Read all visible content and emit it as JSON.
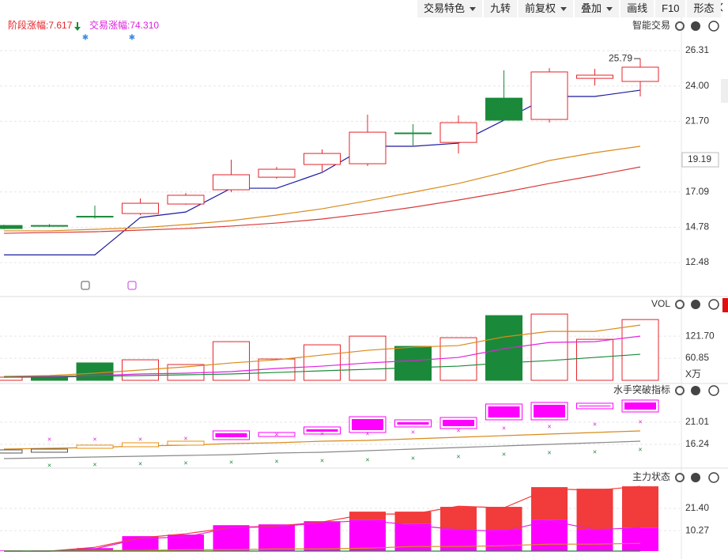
{
  "toolbar": {
    "buttons": [
      {
        "label": "交易特色",
        "menu": true
      },
      {
        "label": "九转",
        "menu": false
      },
      {
        "label": "前复权",
        "menu": true
      },
      {
        "label": "叠加",
        "menu": true
      },
      {
        "label": "画线",
        "menu": false
      },
      {
        "label": "F10",
        "menu": false
      },
      {
        "label": "形态",
        "menu": false
      }
    ]
  },
  "header": {
    "stage_gain": "阶段涨幅:7.617",
    "trade_gain": "交易涨幅:74.310"
  },
  "chart_data": [
    {
      "type": "candlestick",
      "title": "智能交易",
      "up_color": "#e5242b",
      "down_color": "#1a8a3a",
      "open": [
        14.9,
        14.9,
        15.5,
        15.68,
        16.3,
        17.23,
        18.05,
        18.88,
        18.93,
        20.94,
        20.32,
        23.21,
        21.82,
        24.5,
        24.3
      ],
      "close": [
        14.7,
        14.9,
        15.5,
        16.35,
        16.87,
        18.21,
        18.57,
        19.6,
        20.99,
        20.94,
        21.61,
        21.77,
        24.92,
        24.71,
        25.23
      ],
      "high": [
        14.95,
        15.0,
        16.2,
        16.66,
        17.02,
        19.19,
        18.72,
        19.86,
        22.13,
        21.51,
        22.08,
        25.02,
        25.17,
        25.12,
        25.79
      ],
      "low": [
        14.65,
        14.8,
        15.35,
        15.58,
        16.25,
        17.07,
        17.95,
        18.42,
        18.78,
        20.12,
        19.6,
        21.77,
        21.61,
        24.04,
        23.32
      ],
      "lines": [
        {
          "color": "#1a1aa0",
          "values": [
            12.98,
            12.98,
            12.98,
            15.42,
            15.78,
            17.33,
            17.33,
            18.36,
            20.07,
            20.07,
            20.27,
            21.77,
            23.32,
            23.32,
            23.73
          ]
        },
        {
          "color": "#d98a1a",
          "values": [
            14.55,
            14.55,
            14.65,
            14.75,
            14.96,
            15.22,
            15.58,
            15.99,
            16.51,
            17.07,
            17.64,
            18.36,
            19.14,
            19.65,
            20.07
          ]
        },
        {
          "color": "#d83a3a",
          "values": [
            14.39,
            14.44,
            14.49,
            14.6,
            14.7,
            14.86,
            15.06,
            15.32,
            15.68,
            16.09,
            16.56,
            17.07,
            17.64,
            18.16,
            18.72
          ]
        }
      ],
      "max_label": "25.79",
      "marker_value": 19.19,
      "ylim": [
        10.42,
        27.55
      ],
      "yticks": [
        26.31,
        {
          "value": 24,
          "label": "24.00"
        },
        {
          "value": 21.7,
          "label": "21.70"
        },
        17.09,
        14.78,
        12.48
      ]
    },
    {
      "type": "volume",
      "title": "VOL",
      "unit_label": "X万",
      "up_color": "#e5242b",
      "values": [
        8.7,
        11,
        48,
        56.5,
        43.5,
        106.5,
        58.7,
        97.8,
        121.7,
        93.5,
        117.4,
        178.3,
        182.6,
        113,
        167.4
      ],
      "colors": [
        "#e5242b",
        "#1a8a3a",
        "#1a8a3a",
        "#e5242b",
        "#e5242b",
        "#e5242b",
        "#e5242b",
        "#e5242b",
        "#e5242b",
        "#1a8a3a",
        "#e5242b",
        "#1a8a3a",
        "#e5242b",
        "#e5242b",
        "#e5242b"
      ],
      "lines": [
        {
          "color": "#d98a1a",
          "values": [
            10.9,
            13,
            19.6,
            28.3,
            37,
            47.8,
            56.5,
            69.6,
            82.6,
            91.3,
            95.7,
            119.6,
            134.8,
            134.8,
            152.2
          ]
        },
        {
          "color": "#e020e0",
          "values": [
            8.7,
            10.9,
            13,
            17.4,
            19.6,
            23.9,
            32.6,
            39.1,
            47.8,
            54.3,
            63,
            87,
            104.3,
            106.5,
            121.7
          ]
        },
        {
          "color": "#1a8a3a",
          "values": [
            8.7,
            8.7,
            10.9,
            13,
            15.2,
            17.4,
            21.7,
            26.1,
            30.4,
            34.8,
            39.1,
            47.8,
            54.3,
            63,
            71.7
          ]
        }
      ],
      "ylim": [
        0,
        220
      ],
      "yticks": [
        {
          "value": 121.7,
          "label": "121.70"
        },
        60.85
      ]
    },
    {
      "type": "box",
      "title": "水手突破指标",
      "high": [
        15.05,
        15.22,
        16.07,
        16.58,
        16.92,
        19.14,
        18.8,
        19.99,
        22.2,
        21.52,
        22.03,
        24.93,
        25.27,
        25.1,
        25.78
      ],
      "low": [
        14.37,
        14.54,
        15.39,
        15.73,
        16.07,
        17.26,
        17.94,
        18.46,
        18.8,
        19.99,
        19.65,
        21.52,
        21.52,
        23.91,
        23.22
      ],
      "colors": [
        "#555555",
        "#555555",
        "#e8900c",
        "#e8900c",
        "#e8900c",
        "#ff00ff",
        "#ff00ff",
        "#ff00ff",
        "#ff00ff",
        "#ff00ff",
        "#ff00ff",
        "#ff00ff",
        "#ff00ff",
        "#ff00ff",
        "#ff00ff"
      ],
      "lines": [
        {
          "color": "#d98a1a",
          "values": [
            15.22,
            15.39,
            15.56,
            15.9,
            16.07,
            16.41,
            16.58,
            16.92,
            17.09,
            17.43,
            17.77,
            18.11,
            18.45,
            18.8,
            19.14
          ]
        },
        {
          "color": "#888888",
          "values": [
            13.17,
            13.34,
            13.51,
            13.68,
            13.85,
            14.03,
            14.37,
            14.54,
            14.88,
            15.22,
            15.56,
            15.9,
            16.24,
            16.58,
            16.92
          ]
        }
      ],
      "markers": [
        {
          "color": "#e020e0",
          "values": [
            null,
            17.26,
            17.26,
            17.26,
            17.43,
            17.94,
            18.28,
            18.45,
            18.45,
            18.8,
            19.14,
            19.65,
            19.99,
            20.5,
            21.01
          ]
        },
        {
          "color": "#1a8a3a",
          "values": [
            null,
            11.64,
            11.81,
            11.98,
            12.15,
            12.32,
            12.49,
            12.66,
            12.83,
            13.17,
            13.51,
            14.03,
            14.37,
            14.54,
            15.05
          ]
        }
      ],
      "ylim": [
        11.13,
        26.8
      ],
      "yticks": [
        21.01,
        16.24
      ]
    },
    {
      "type": "stacked_bar",
      "title": "主力状态",
      "series": [
        {
          "color": "#ff00ff",
          "values": [
            0.3,
            0.3,
            1.5,
            7.5,
            8.3,
            13,
            13.4,
            15,
            15.8,
            13.8,
            10.7,
            10.7,
            15.8,
            10.7,
            11.8
          ]
        },
        {
          "color": "#f23b3b",
          "values": [
            0,
            0,
            0,
            0,
            0,
            0,
            0,
            0,
            4,
            6,
            11.5,
            11.5,
            16.3,
            20.6,
            20.7
          ]
        }
      ],
      "lines": [
        {
          "color": "#f23b3b",
          "values": [
            0,
            0,
            1.9,
            6.6,
            8.7,
            11.8,
            12.6,
            14.6,
            18.6,
            18.6,
            22.5,
            21.7,
            31.3,
            30.5,
            32.5
          ]
        },
        {
          "color": "#e020e0",
          "values": [
            0,
            0,
            1.1,
            6.3,
            7.1,
            11.8,
            12.2,
            14.2,
            15.4,
            13,
            10.7,
            9.9,
            15.4,
            10.7,
            11.8
          ]
        },
        {
          "color": "#d98a1a",
          "values": [
            0,
            0,
            0.3,
            0.3,
            0.7,
            0.7,
            1.1,
            1.1,
            1.5,
            2.3,
            2.3,
            2.7,
            3.5,
            3.5,
            3.9
          ]
        },
        {
          "color": "#1a8a3a",
          "values": [
            0,
            0,
            0,
            0,
            0,
            0,
            0,
            0,
            0,
            0,
            0,
            0,
            0,
            0,
            0
          ]
        }
      ],
      "ylim": [
        0,
        36.5
      ],
      "yticks": [
        {
          "value": 21.4,
          "label": "21.40"
        },
        10.27
      ]
    }
  ]
}
